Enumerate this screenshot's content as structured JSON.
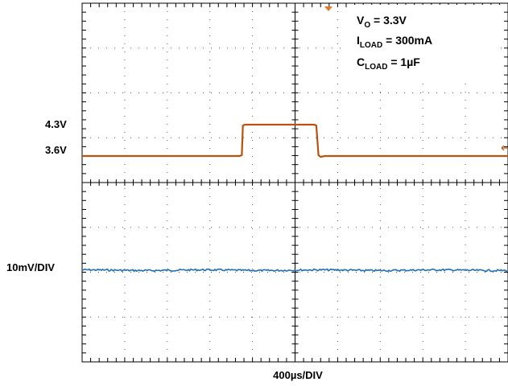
{
  "chart_data": {
    "type": "line",
    "title": "",
    "xlabel": "400µs/DIV",
    "ylabel": "",
    "grid": true,
    "x_divisions": 10,
    "y_divisions": 8,
    "time_per_div_us": 400,
    "annotations": {
      "vo": {
        "main": "V",
        "sub": "O",
        "rest": " = 3.3V"
      },
      "iload": {
        "main": "I",
        "sub": "LOAD",
        "rest": " = 300mA"
      },
      "cload": {
        "main": "C",
        "sub": "LOAD",
        "rest": " = 1µF"
      }
    },
    "series": [
      {
        "color": "#b5540f",
        "y_tick_labels": [
          {
            "label": "4.3V",
            "value": 4.3
          },
          {
            "label": "3.6V",
            "value": 3.6
          }
        ],
        "points_time_us_volts": [
          [
            0,
            3.6
          ],
          [
            1480,
            3.6
          ],
          [
            1500,
            3.62
          ],
          [
            1510,
            4.28
          ],
          [
            1530,
            4.3
          ],
          [
            2000,
            4.3
          ],
          [
            2180,
            4.3
          ],
          [
            2200,
            4.28
          ],
          [
            2220,
            3.62
          ],
          [
            2240,
            3.58
          ],
          [
            2280,
            3.6
          ],
          [
            4000,
            3.6
          ]
        ]
      },
      {
        "color": "#1f6fb5",
        "y_tick_labels": [
          {
            "label": "10mV/DIV",
            "value": 0
          }
        ],
        "units": "mV (AC, 10mV/DIV)",
        "points_time_us_mv": [
          [
            0,
            0
          ],
          [
            4000,
            0
          ]
        ]
      }
    ]
  }
}
